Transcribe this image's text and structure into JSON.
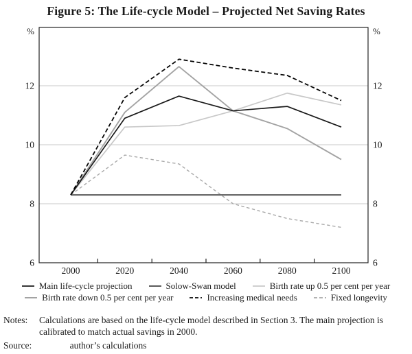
{
  "title": "Figure 5: The Life-cycle Model – Projected Net Saving Rates",
  "axes": {
    "unit_left": "%",
    "unit_right": "%",
    "yticks": [
      6,
      8,
      10,
      12
    ],
    "xticks": [
      2000,
      2020,
      2040,
      2060,
      2080,
      2100
    ]
  },
  "chart_data": {
    "type": "line",
    "title": "Projected Net Saving Rates",
    "x": [
      2000,
      2020,
      2040,
      2060,
      2080,
      2100
    ],
    "series": [
      {
        "name": "Main life-cycle projection",
        "values": [
          8.3,
          10.9,
          11.65,
          11.15,
          11.3,
          10.6
        ],
        "color": "#1a1a1a",
        "style": "solid",
        "width": 1.7
      },
      {
        "name": "Solow-Swan model",
        "values": [
          8.3,
          8.3,
          8.3,
          8.3,
          8.3,
          8.3
        ],
        "color": "#5a5a5a",
        "style": "solid",
        "width": 2.0
      },
      {
        "name": "Birth rate up 0.5 per cent per year",
        "values": [
          8.3,
          10.6,
          10.65,
          11.15,
          11.75,
          11.35
        ],
        "color": "#c8c8c8",
        "style": "solid",
        "width": 1.7
      },
      {
        "name": "Birth rate down 0.5 per cent per year",
        "values": [
          8.3,
          11.1,
          12.65,
          11.15,
          10.55,
          9.5
        ],
        "color": "#a3a3a3",
        "style": "solid",
        "width": 1.9
      },
      {
        "name": "Increasing medical needs",
        "values": [
          8.3,
          11.6,
          12.9,
          12.6,
          12.35,
          11.5
        ],
        "color": "#050505",
        "style": "dashed",
        "width": 1.8
      },
      {
        "name": "Fixed longevity",
        "values": [
          8.3,
          9.65,
          9.35,
          8.0,
          7.5,
          7.2
        ],
        "color": "#a8a8a8",
        "style": "dashed",
        "width": 1.4
      }
    ],
    "ylim": [
      6,
      13.9
    ],
    "xlabel": "",
    "ylabel": "%",
    "grid_y": [
      8,
      10,
      12
    ],
    "legend_position": "bottom"
  },
  "notes": {
    "label": "Notes:",
    "text": "Calculations are based on the life-cycle model described in Section 3. The main projection is calibrated to match actual savings in 2000."
  },
  "source": {
    "label": "Source:",
    "text": "author’s calculations"
  }
}
